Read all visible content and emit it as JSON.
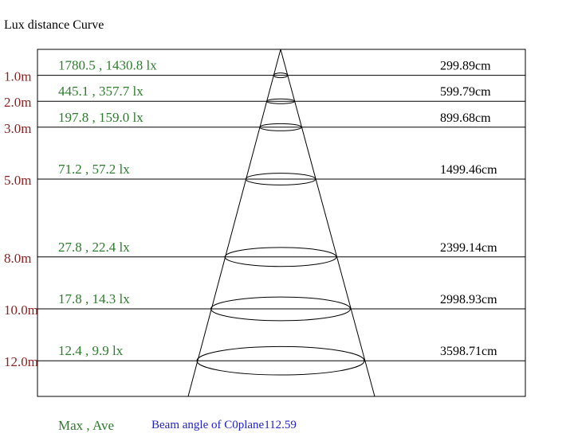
{
  "title": "Lux distance Curve",
  "rows": [
    {
      "distance": "1.0m",
      "lux": "1780.5 , 1430.8 lx",
      "diameter": "299.89cm"
    },
    {
      "distance": "2.0m",
      "lux": "445.1 , 357.7 lx",
      "diameter": "599.79cm"
    },
    {
      "distance": "3.0m",
      "lux": "197.8 , 159.0 lx",
      "diameter": "899.68cm"
    },
    {
      "distance": "5.0m",
      "lux": "71.2 , 57.2 lx",
      "diameter": "1499.46cm"
    },
    {
      "distance": "8.0m",
      "lux": "27.8 , 22.4 lx",
      "diameter": "2399.14cm"
    },
    {
      "distance": "10.0m",
      "lux": "17.8 , 14.3 lx",
      "diameter": "2998.93cm"
    },
    {
      "distance": "12.0m",
      "lux": "12.4 , 9.9 lx",
      "diameter": "3598.71cm"
    }
  ],
  "legend": "Max , Ave",
  "beam_angle": "Beam angle of C0plane112.59"
}
